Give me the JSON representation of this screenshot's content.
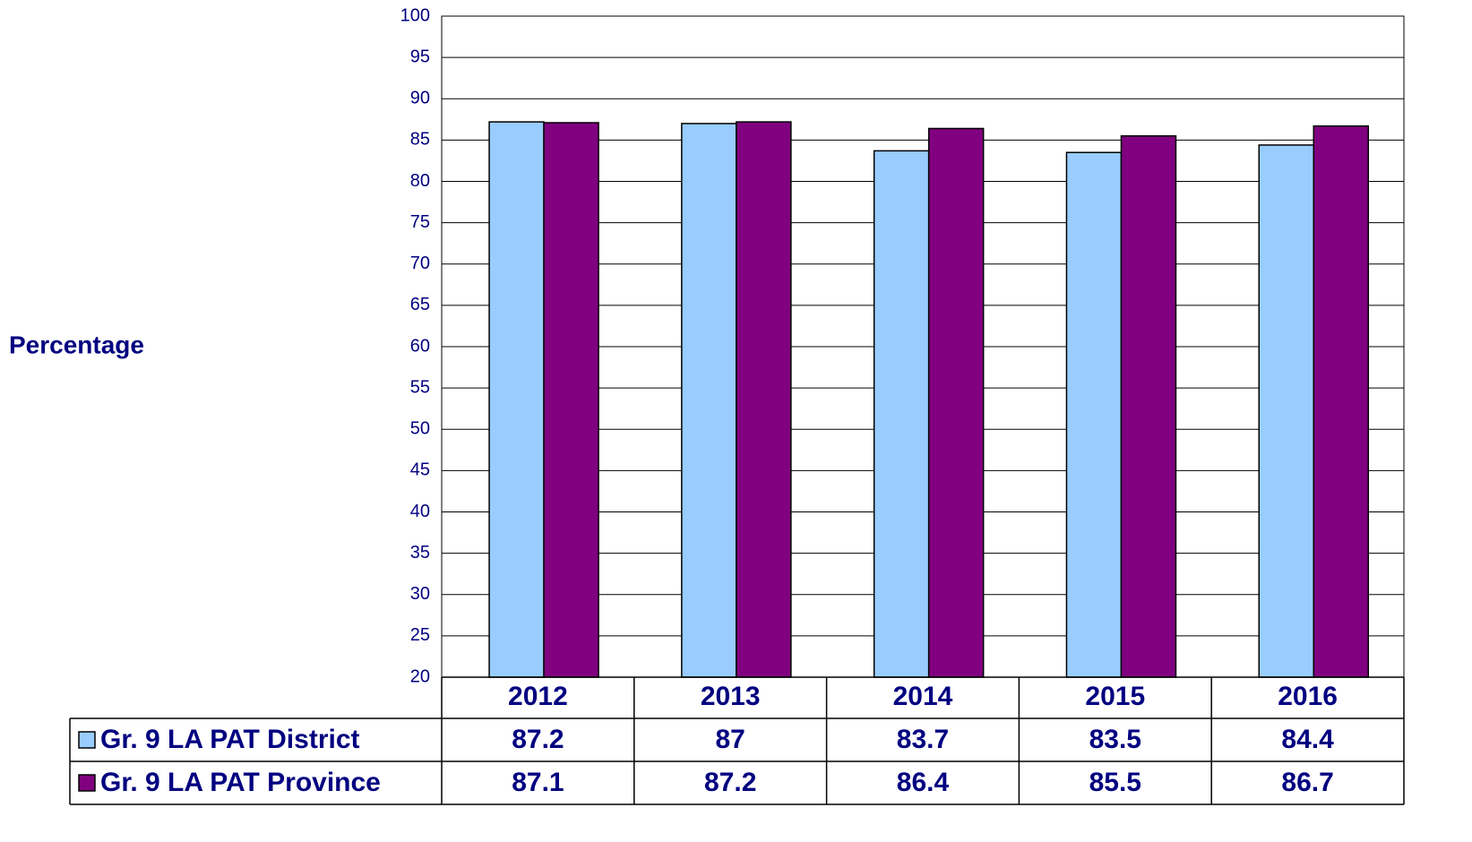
{
  "chart_data": {
    "type": "bar",
    "y_label": "Percentage",
    "categories": [
      "2012",
      "2013",
      "2014",
      "2015",
      "2016"
    ],
    "series": [
      {
        "name": "Gr. 9 LA PAT District",
        "color": "#99ccff",
        "values": [
          87.2,
          87,
          83.7,
          83.5,
          84.4
        ]
      },
      {
        "name": "Gr. 9 LA PAT Province",
        "color": "#800080",
        "values": [
          87.1,
          87.2,
          86.4,
          85.5,
          86.7
        ]
      }
    ],
    "ylim": [
      20,
      100
    ],
    "yticks": [
      20,
      25,
      30,
      35,
      40,
      45,
      50,
      55,
      60,
      65,
      70,
      75,
      80,
      85,
      90,
      95,
      100
    ],
    "grid": true,
    "data_table": true
  }
}
